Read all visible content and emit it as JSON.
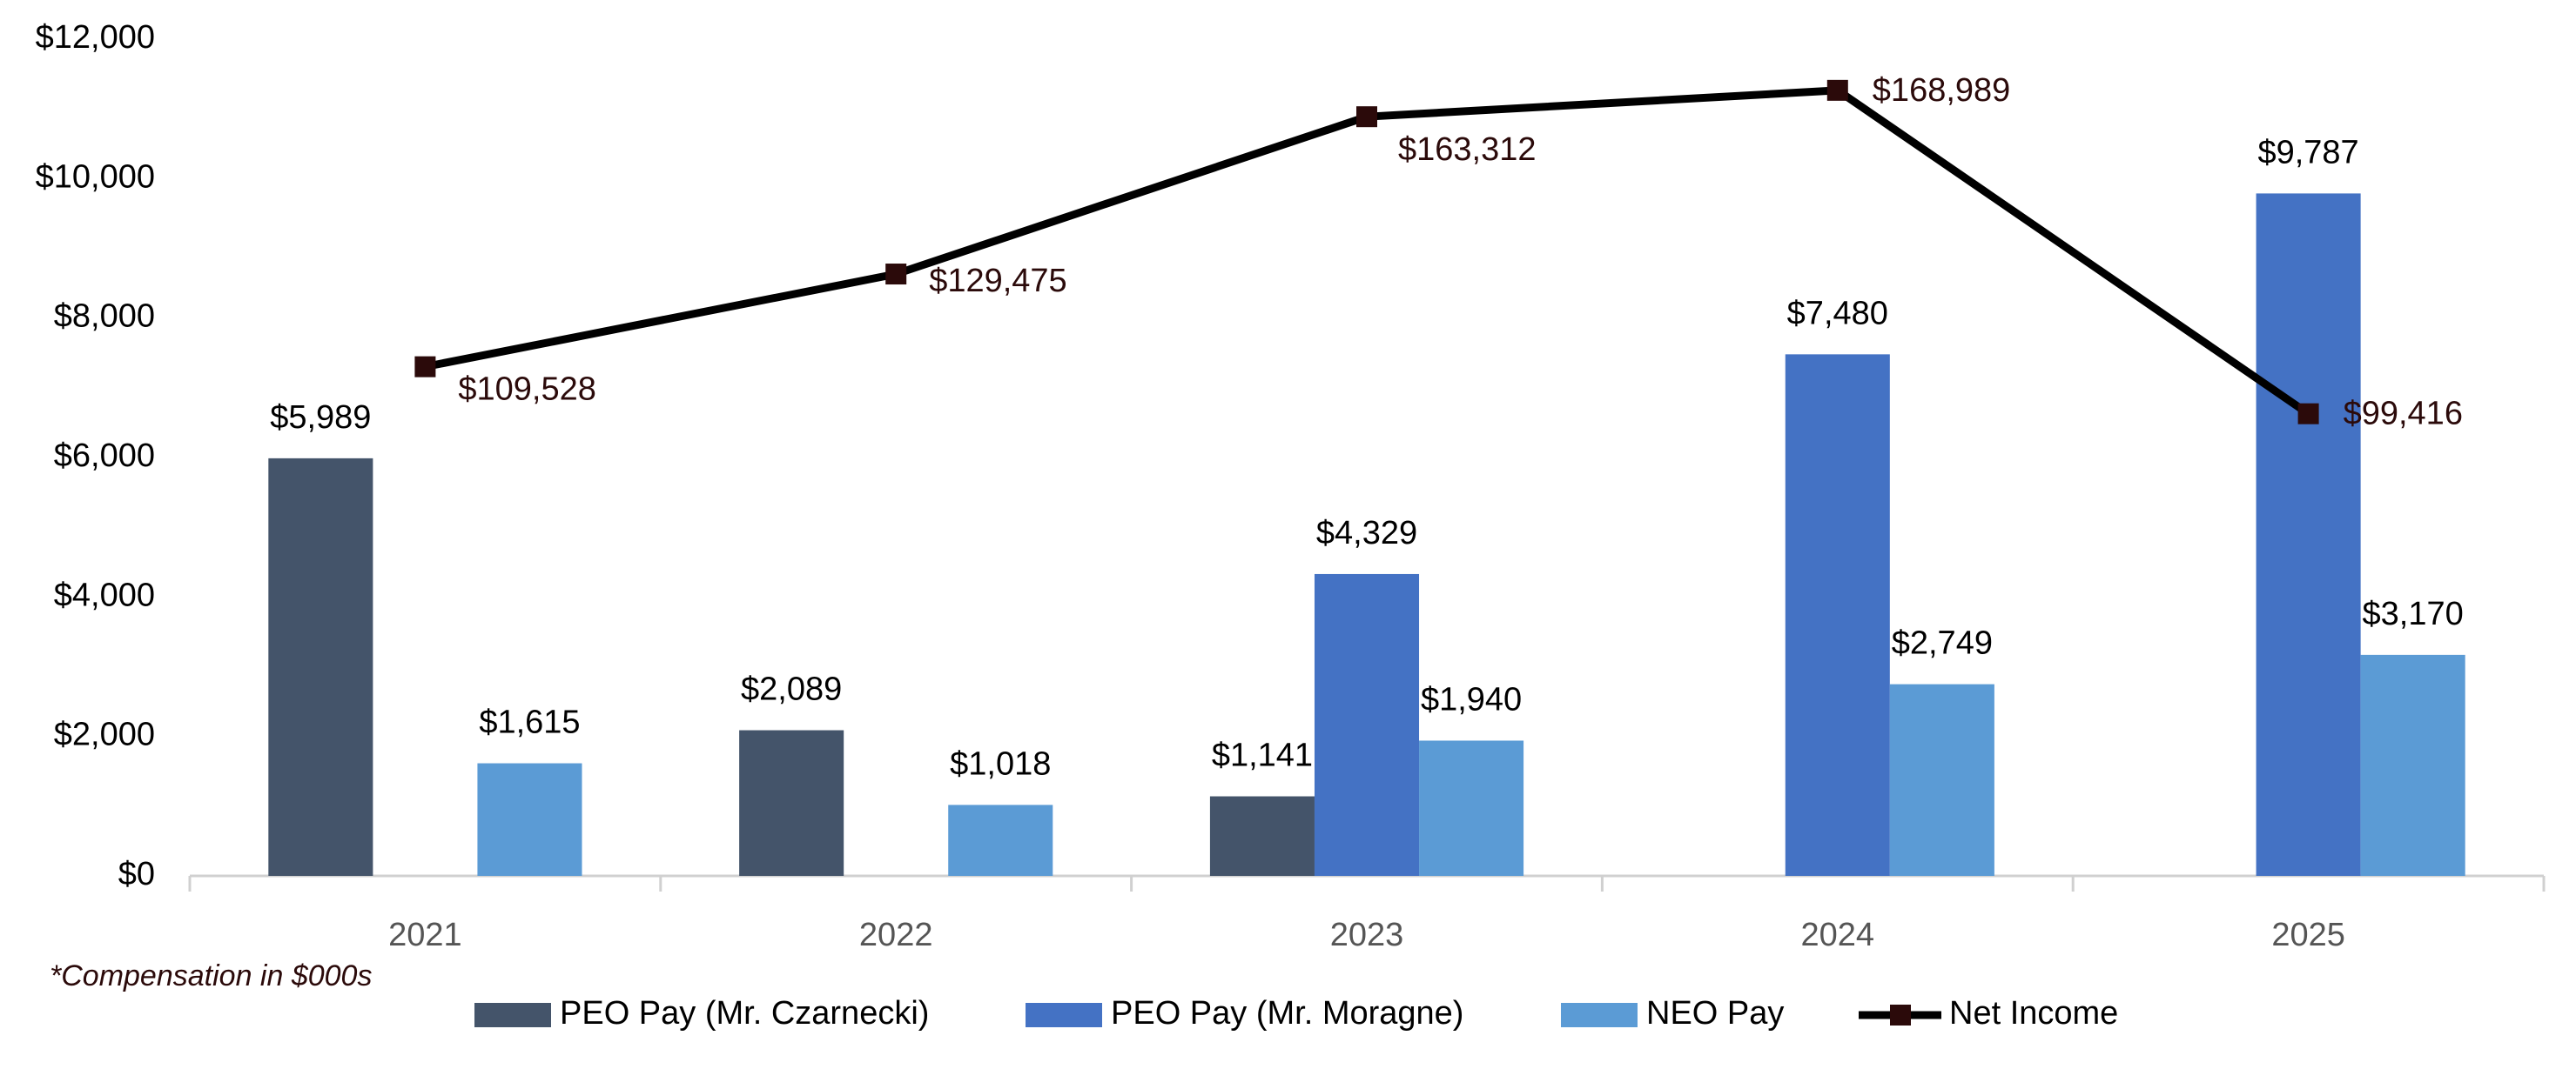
{
  "chart_data": {
    "type": "bar-line",
    "categories": [
      "2021",
      "2022",
      "2023",
      "2024",
      "2025"
    ],
    "series": [
      {
        "name": "PEO Pay (Mr. Czarnecki)",
        "type": "bar",
        "color": "#44546a",
        "values": [
          5989,
          2089,
          1141,
          null,
          null
        ],
        "value_labels": [
          "$5,989",
          "$2,089",
          "$1,141",
          null,
          null
        ]
      },
      {
        "name": "PEO Pay (Mr. Moragne)",
        "type": "bar",
        "color": "#4472c4",
        "values": [
          null,
          null,
          4329,
          7480,
          9787
        ],
        "value_labels": [
          null,
          null,
          "$4,329",
          "$7,480",
          "$9,787"
        ]
      },
      {
        "name": "NEO Pay",
        "type": "bar",
        "color": "#5b9bd5",
        "values": [
          1615,
          1018,
          1940,
          2749,
          3170
        ],
        "value_labels": [
          "$1,615",
          "$1,018",
          "$1,940",
          "$2,749",
          "$3,170"
        ]
      },
      {
        "name": "Net Income",
        "type": "line",
        "axis": "y2",
        "color": "#000000",
        "marker_color": "#2b0a0a",
        "values": [
          109528,
          129475,
          163312,
          168989,
          99416
        ],
        "value_labels": [
          "$109,528",
          "$129,475",
          "$163,312",
          "$168,989",
          "$99,416"
        ]
      }
    ],
    "ylim": [
      0,
      12000
    ],
    "yticks": [
      {
        "value": 0,
        "label": "$0"
      },
      {
        "value": 2000,
        "label": "$2,000"
      },
      {
        "value": 4000,
        "label": "$4,000"
      },
      {
        "value": 6000,
        "label": "$6,000"
      },
      {
        "value": 8000,
        "label": "$8,000"
      },
      {
        "value": 10000,
        "label": "$10,000"
      },
      {
        "value": 12000,
        "label": "$12,000"
      }
    ],
    "y2lim": [
      0,
      180000
    ],
    "footnote": "*Compensation in $000s",
    "legend": "bottom"
  }
}
